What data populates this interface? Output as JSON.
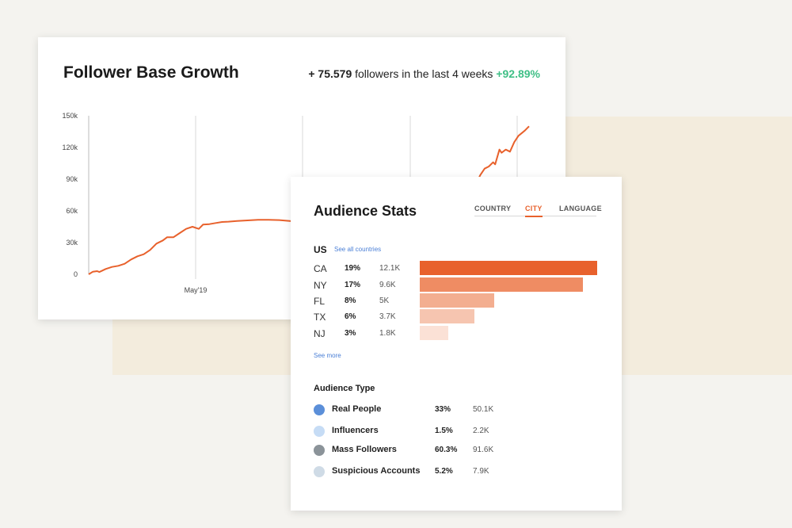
{
  "growth": {
    "title": "Follower Base Growth",
    "summary_count": "+ 75.579",
    "summary_text": "followers in the last 4 weeks",
    "summary_pct": "+92.89%"
  },
  "chart_data": {
    "type": "line",
    "title": "Follower Base Growth",
    "y_ticks": [
      "0",
      "30k",
      "60k",
      "90k",
      "120k",
      "150k"
    ],
    "ylim": [
      0,
      150000
    ],
    "x_tick_label": "May'19",
    "line_color": "#e8612c",
    "series": [
      {
        "points": [
          [
            0,
            0
          ],
          [
            2,
            2500
          ],
          [
            4,
            3000
          ],
          [
            5,
            2200
          ],
          [
            8,
            5000
          ],
          [
            11,
            7000
          ],
          [
            14,
            8000
          ],
          [
            17,
            10000
          ],
          [
            20,
            14000
          ],
          [
            23,
            17000
          ],
          [
            26,
            19000
          ],
          [
            29,
            23000
          ],
          [
            32,
            29000
          ],
          [
            35,
            32000
          ],
          [
            37,
            35000
          ],
          [
            40,
            35000
          ],
          [
            43,
            39000
          ],
          [
            46,
            43000
          ],
          [
            49,
            45000
          ],
          [
            52,
            43000
          ],
          [
            54,
            47000
          ],
          [
            57,
            47500
          ],
          [
            60,
            48500
          ],
          [
            63,
            49500
          ],
          [
            66,
            49800
          ],
          [
            70,
            50500
          ],
          [
            75,
            51000
          ],
          [
            80,
            51500
          ],
          [
            85,
            51500
          ],
          [
            90,
            51300
          ],
          [
            95,
            50500
          ],
          [
            100,
            49500
          ],
          [
            180,
            67000
          ],
          [
            181,
            76000
          ],
          [
            183,
            86000
          ],
          [
            185,
            94000
          ],
          [
            187,
            100000
          ],
          [
            189,
            102000
          ],
          [
            191,
            106000
          ],
          [
            192,
            104000
          ],
          [
            194,
            118000
          ],
          [
            195,
            115000
          ],
          [
            197,
            118000
          ],
          [
            199,
            116000
          ],
          [
            201,
            125000
          ],
          [
            203,
            131000
          ],
          [
            206,
            136000
          ],
          [
            208,
            140000
          ]
        ]
      }
    ]
  },
  "audience": {
    "title": "Audience Stats",
    "tabs": [
      "COUNTRY",
      "CITY",
      "LANGUAGE"
    ],
    "active_tab": "CITY",
    "country": "US",
    "see_all": "See all countries",
    "see_more": "See more",
    "rows": [
      {
        "code": "CA",
        "pct": "19%",
        "value": "12.1K",
        "share": 1.0,
        "color": "#e8612c"
      },
      {
        "code": "NY",
        "pct": "17%",
        "value": "9.6K",
        "share": 0.92,
        "color": "#ef8c63"
      },
      {
        "code": "FL",
        "pct": "8%",
        "value": "5K",
        "share": 0.42,
        "color": "#f3ae90"
      },
      {
        "code": "TX",
        "pct": "6%",
        "value": "3.7K",
        "share": 0.31,
        "color": "#f6c5b0"
      },
      {
        "code": "NJ",
        "pct": "3%",
        "value": "1.8K",
        "share": 0.16,
        "color": "#fbe1d6"
      }
    ],
    "type_title": "Audience Type",
    "types": [
      {
        "name": "Real People",
        "pct": "33%",
        "value": "50.1K",
        "color": "#5b8fd9"
      },
      {
        "name": "Influencers",
        "pct": "1.5%",
        "value": "2.2K",
        "color": "#c6dcf5"
      },
      {
        "name": "Mass Followers",
        "pct": "60.3%",
        "value": "91.6K",
        "color": "#8b9399"
      },
      {
        "name": "Suspicious Accounts",
        "pct": "5.2%",
        "value": "7.9K",
        "color": "#cfdbe6"
      }
    ]
  }
}
